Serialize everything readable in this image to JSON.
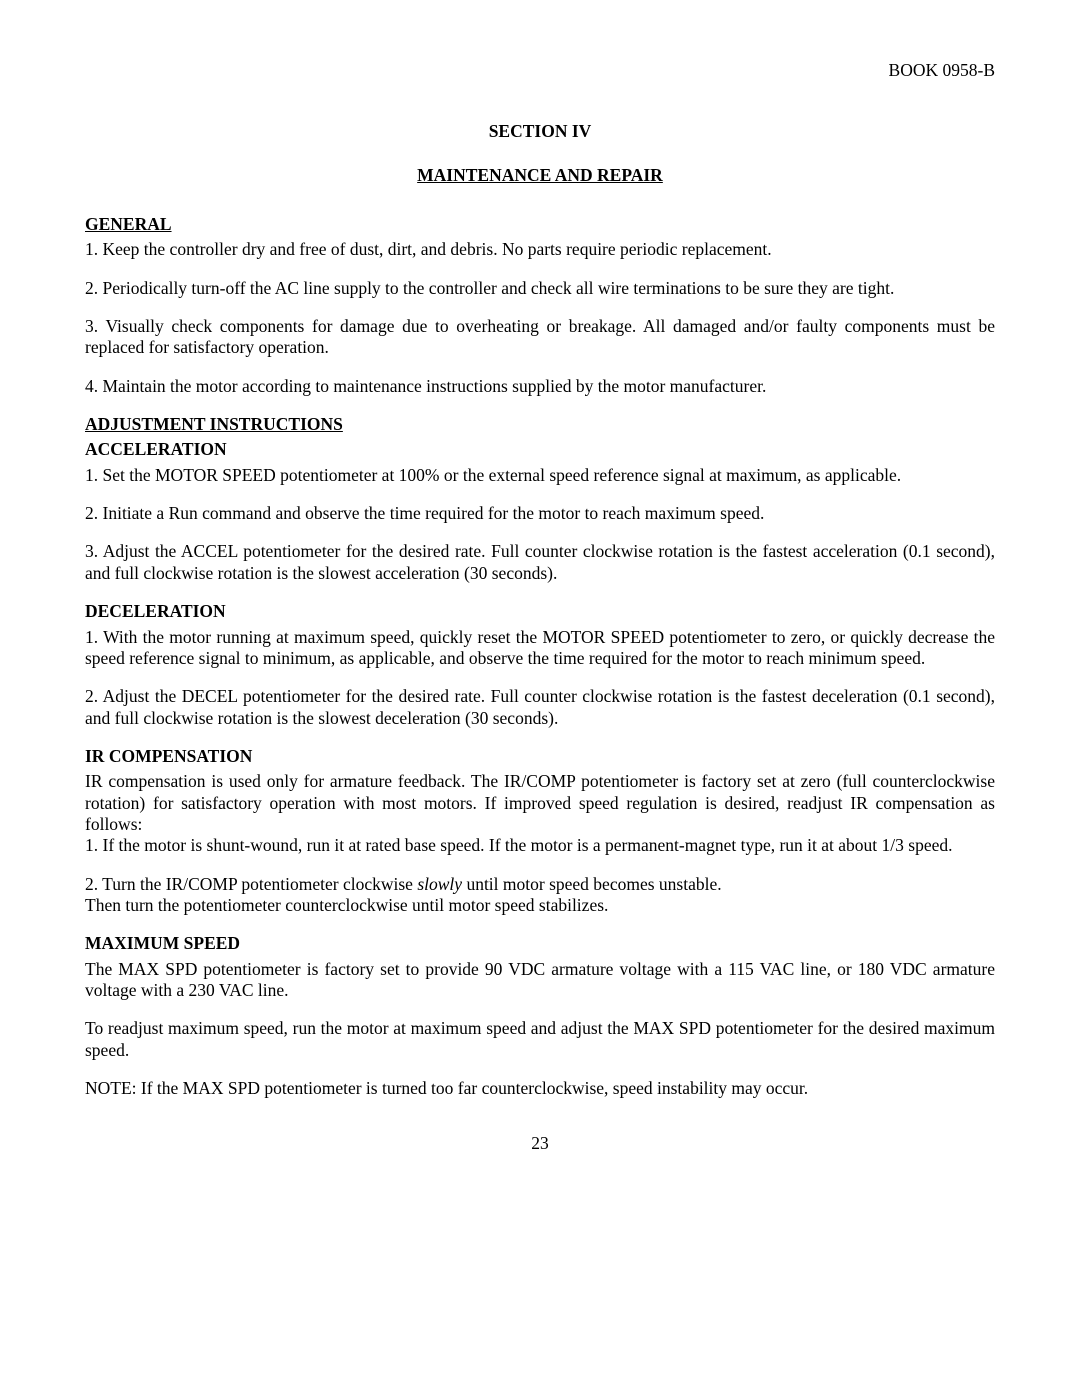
{
  "header": {
    "book_ref": "BOOK 0958-B"
  },
  "section": {
    "number": "SECTION IV",
    "title": "MAINTENANCE AND REPAIR"
  },
  "general": {
    "heading": "GENERAL",
    "p1": "1. Keep the controller dry and free of dust, dirt, and debris. No parts require periodic replacement.",
    "p2": "2. Periodically turn-off the AC line supply to the controller and check all wire terminations to be sure they are tight.",
    "p3": "3. Visually check components for damage due to overheating or breakage. All damaged and/or faulty components must be replaced for satisfactory operation.",
    "p4": "4. Maintain the motor according to maintenance instructions supplied by the motor manufacturer."
  },
  "adjustment": {
    "heading": "ADJUSTMENT INSTRUCTIONS"
  },
  "acceleration": {
    "heading": "ACCELERATION",
    "p1": "1. Set the MOTOR SPEED potentiometer at 100% or the external speed reference signal at maximum, as applicable.",
    "p2": "2. Initiate a Run command and observe the time required for the motor to reach maximum speed.",
    "p3": "3. Adjust the ACCEL potentiometer for the desired rate. Full counter clockwise rotation is the fastest acceleration (0.1 second), and full clockwise rotation is the slowest acceleration (30 seconds)."
  },
  "deceleration": {
    "heading": "DECELERATION",
    "p1": "1. With the motor running at maximum speed, quickly reset the MOTOR SPEED potentiometer to zero, or quickly decrease the speed reference signal to minimum, as applicable, and observe the time required for the motor to reach minimum speed.",
    "p2": "2. Adjust the DECEL potentiometer for the desired rate. Full counter clockwise rotation is the fastest deceleration (0.1 second), and full clockwise rotation is the slowest deceleration (30 seconds)."
  },
  "ir_comp": {
    "heading": "IR COMPENSATION",
    "intro": "IR compensation is used only for armature feedback. The IR/COMP potentiometer is factory set at zero (full counterclockwise rotation) for satisfactory operation with most motors. If improved speed regulation is desired, readjust IR compensation as follows:",
    "p1": "1. If the motor is shunt-wound, run it at rated base speed. If the motor is a permanent-magnet type, run it at about 1/3 speed.",
    "p2a": "2. Turn the IR/COMP potentiometer clockwise ",
    "p2_italic": "slowly",
    "p2b": " until motor speed becomes unstable.",
    "p2c": "Then turn the potentiometer counterclockwise until motor speed stabilizes."
  },
  "max_speed": {
    "heading": "MAXIMUM SPEED",
    "p1": "The MAX SPD potentiometer is factory set to provide 90 VDC armature voltage with a 115 VAC line, or 180 VDC armature voltage with a 230 VAC line.",
    "p2": "To readjust maximum speed, run the motor at maximum speed and adjust the MAX SPD potentiometer for the desired maximum speed.",
    "note": "NOTE: If the MAX SPD potentiometer is turned too far counterclockwise, speed instability may occur."
  },
  "page": {
    "number": "23"
  }
}
